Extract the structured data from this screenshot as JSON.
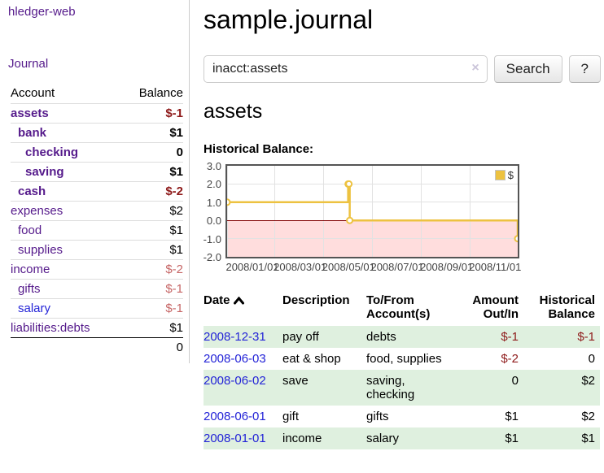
{
  "colors": {
    "link-purple": "#551a8b",
    "link-blue": "#2323d7",
    "neg-strong": "#8e1a1a",
    "neg-soft": "#c66666",
    "row-green": "#dff0df",
    "chart-gold": "#edc240",
    "chart-pink": "#ffdddd",
    "chart-zero": "#800000",
    "chart-grid": "#e2e2e2",
    "chart-border": "#545454",
    "border-gray": "#cccccc"
  },
  "sidebar": {
    "brand": "hledger-web",
    "journal_link": "Journal",
    "accounts": {
      "header_account": "Account",
      "header_balance": "Balance",
      "rows": [
        {
          "name": "assets",
          "balance": "$-1"
        },
        {
          "name": "bank",
          "balance": "$1"
        },
        {
          "name": "checking",
          "balance": "0"
        },
        {
          "name": "saving",
          "balance": "$1"
        },
        {
          "name": "cash",
          "balance": "$-2"
        },
        {
          "name": "expenses",
          "balance": "$2"
        },
        {
          "name": "food",
          "balance": "$1"
        },
        {
          "name": "supplies",
          "balance": "$1"
        },
        {
          "name": "income",
          "balance": "$-2"
        },
        {
          "name": "gifts",
          "balance": "$-1"
        },
        {
          "name": "salary",
          "balance": "$-1"
        },
        {
          "name": "liabilities:debts",
          "balance": "$1"
        }
      ],
      "total": "0"
    }
  },
  "header": {
    "title": "sample.journal"
  },
  "search": {
    "value": "inacct:assets",
    "clear_icon": "×",
    "search_button": "Search",
    "help_button": "?"
  },
  "account_view": {
    "heading": "assets",
    "chart_title": "Historical Balance:"
  },
  "chart_data": {
    "type": "line",
    "title": "Historical Balance",
    "style": "steps",
    "series": [
      {
        "name": "$",
        "color": "#edc240",
        "points": [
          [
            "2008-01-01",
            1
          ],
          [
            "2008-06-01",
            2
          ],
          [
            "2008-06-02",
            2
          ],
          [
            "2008-06-03",
            0
          ],
          [
            "2008-12-31",
            -1
          ]
        ]
      }
    ],
    "xlim": [
      "2008-01-01",
      "2008-12-31"
    ],
    "ylim": [
      -2,
      3
    ],
    "x_ticks": [
      "2008/01/01",
      "2008/03/01",
      "2008/05/01",
      "2008/07/01",
      "2008/09/01",
      "2008/11/01"
    ],
    "y_ticks": [
      "3.0",
      "2.0",
      "1.0",
      "0.0",
      "-1.0",
      "-2.0"
    ],
    "grid": true,
    "legend": {
      "position": "top-right",
      "label": "$"
    },
    "zero_line": true,
    "negative_region": true
  },
  "register": {
    "headers": {
      "date": "Date",
      "description": "Description",
      "tofrom": "To/From\nAccount(s)",
      "amount": "Amount\nOut/In",
      "balance": "Historical\nBalance"
    },
    "rows": [
      {
        "date": "2008-12-31",
        "description": "pay off",
        "accounts": "debts",
        "amount": "$-1",
        "balance": "$-1"
      },
      {
        "date": "2008-06-03",
        "description": "eat & shop",
        "accounts": "food, supplies",
        "amount": "$-2",
        "balance": "0"
      },
      {
        "date": "2008-06-02",
        "description": "save",
        "accounts": "saving, checking",
        "amount": "0",
        "balance": "$2"
      },
      {
        "date": "2008-06-01",
        "description": "gift",
        "accounts": "gifts",
        "amount": "$1",
        "balance": "$2"
      },
      {
        "date": "2008-01-01",
        "description": "income",
        "accounts": "salary",
        "amount": "$1",
        "balance": "$1"
      }
    ]
  }
}
